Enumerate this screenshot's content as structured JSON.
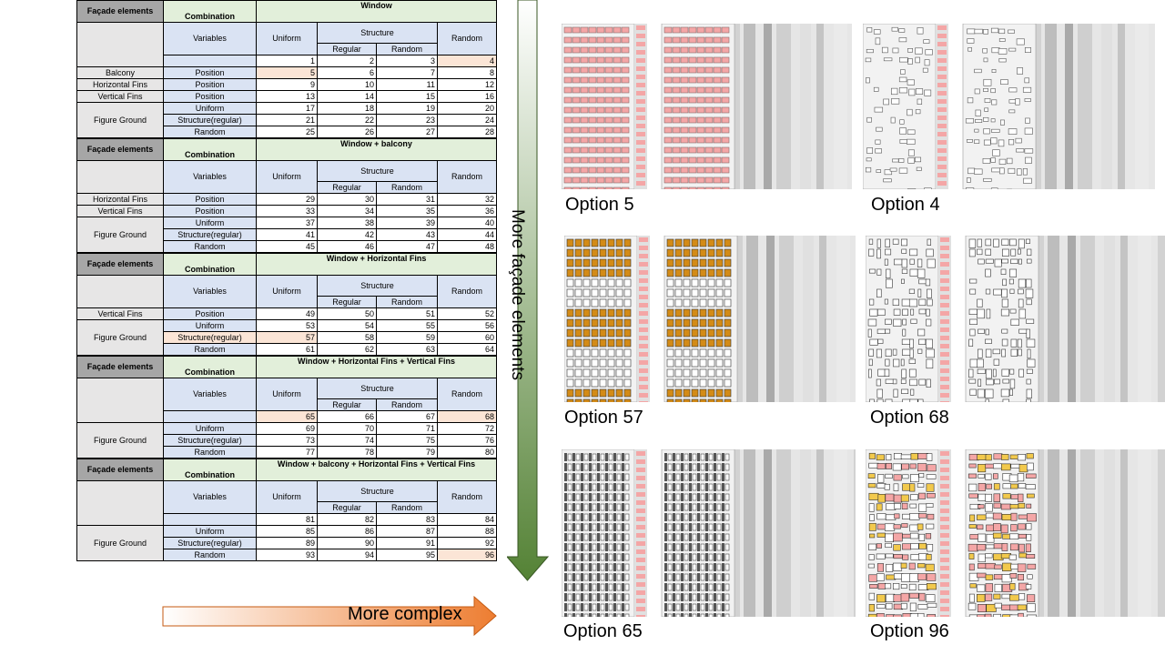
{
  "headers": {
    "facade_elements": "Façade elements",
    "combination": "Combination",
    "variables": "Variables",
    "uniform": "Uniform",
    "structure": "Structure",
    "regular": "Regular",
    "random_sub": "Random",
    "random": "Random"
  },
  "sections": [
    {
      "title": "Window",
      "index_row": [
        "1",
        "2",
        "3",
        "4"
      ],
      "rows": [
        {
          "element": "Balcony",
          "combo": "Position",
          "values": [
            "5",
            "6",
            "7",
            "8"
          ]
        },
        {
          "element": "Horizontal Fins",
          "combo": "Position",
          "values": [
            "9",
            "10",
            "11",
            "12"
          ]
        },
        {
          "element": "Vertical Fins",
          "combo": "Position",
          "values": [
            "13",
            "14",
            "15",
            "16"
          ]
        },
        {
          "element": "Figure Ground",
          "combo": "Uniform",
          "values": [
            "17",
            "18",
            "19",
            "20"
          ]
        },
        {
          "element": "",
          "combo": "Structure(regular)",
          "values": [
            "21",
            "22",
            "23",
            "24"
          ]
        },
        {
          "element": "",
          "combo": "Random",
          "values": [
            "25",
            "26",
            "27",
            "28"
          ]
        }
      ]
    },
    {
      "title": "Window + balcony",
      "rows": [
        {
          "element": "Horizontal Fins",
          "combo": "Position",
          "values": [
            "29",
            "30",
            "31",
            "32"
          ]
        },
        {
          "element": "Vertical Fins",
          "combo": "Position",
          "values": [
            "33",
            "34",
            "35",
            "36"
          ]
        },
        {
          "element": "Figure Ground",
          "combo": "Uniform",
          "values": [
            "37",
            "38",
            "39",
            "40"
          ]
        },
        {
          "element": "",
          "combo": "Structure(regular)",
          "values": [
            "41",
            "42",
            "43",
            "44"
          ]
        },
        {
          "element": "",
          "combo": "Random",
          "values": [
            "45",
            "46",
            "47",
            "48"
          ]
        }
      ]
    },
    {
      "title": "Window + Horizontal Fins",
      "rows": [
        {
          "element": "Vertical Fins",
          "combo": "Position",
          "values": [
            "49",
            "50",
            "51",
            "52"
          ]
        },
        {
          "element": "Figure Ground",
          "combo": "Uniform",
          "values": [
            "53",
            "54",
            "55",
            "56"
          ]
        },
        {
          "element": "",
          "combo": "Structure(regular)",
          "values": [
            "57",
            "58",
            "59",
            "60"
          ]
        },
        {
          "element": "",
          "combo": "Random",
          "values": [
            "61",
            "62",
            "63",
            "64"
          ]
        }
      ]
    },
    {
      "title": "Window + Horizontal Fins + Vertical Fins",
      "index_row": [
        "65",
        "66",
        "67",
        "68"
      ],
      "rows": [
        {
          "element": "Figure Ground",
          "combo": "Uniform",
          "values": [
            "69",
            "70",
            "71",
            "72"
          ]
        },
        {
          "element": "",
          "combo": "Structure(regular)",
          "values": [
            "73",
            "74",
            "75",
            "76"
          ]
        },
        {
          "element": "",
          "combo": "Random",
          "values": [
            "77",
            "78",
            "79",
            "80"
          ]
        }
      ]
    },
    {
      "title": "Window + balcony + Horizontal Fins + Vertical Fins",
      "index_row": [
        "81",
        "82",
        "83",
        "84"
      ],
      "rows": [
        {
          "element": "Figure Ground",
          "combo": "Uniform",
          "values": [
            "85",
            "86",
            "87",
            "88"
          ]
        },
        {
          "element": "",
          "combo": "Structure(regular)",
          "values": [
            "89",
            "90",
            "91",
            "92"
          ]
        },
        {
          "element": "",
          "combo": "Random",
          "values": [
            "93",
            "94",
            "95",
            "96"
          ]
        }
      ]
    }
  ],
  "highlight_color": "#fbe5d6",
  "arrows": {
    "vertical_label": "More façade elements",
    "vertical_gradient": [
      "#ffffff",
      "#548235"
    ],
    "horizontal_label": "More complex",
    "horizontal_gradient": [
      "#ffffff",
      "#ed7d31"
    ]
  },
  "options": [
    {
      "caption": "Option 5"
    },
    {
      "caption": "Option 4"
    },
    {
      "caption": "Option 57"
    },
    {
      "caption": "Option 68"
    },
    {
      "caption": "Option 65"
    },
    {
      "caption": "Option 96"
    }
  ]
}
